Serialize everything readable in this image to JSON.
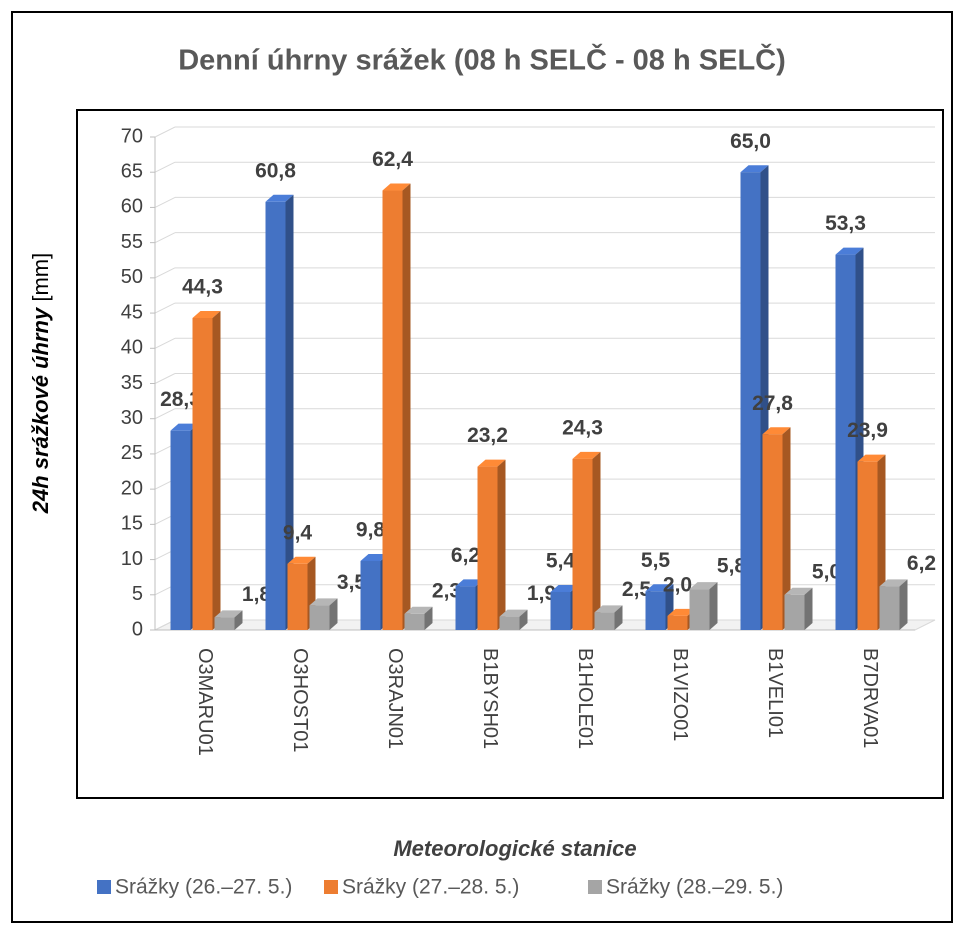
{
  "chart_data": {
    "type": "bar3d",
    "title": "Denní úhrny srážek (08 h SELČ - 08 h SELČ)",
    "ylabel": "24h srážkové úhrny",
    "ylabel_unit": "[mm]",
    "xlabel": "Meteorologické stanice",
    "categories": [
      "O3MARU01",
      "O3HOST01",
      "O3RAJN01",
      "B1BYSH01",
      "B1HOLE01",
      "B1VIZO01",
      "B1VELI01",
      "B7DRVA01"
    ],
    "series": [
      {
        "name": "Srážky (26.–27. 5.)",
        "color": "#4472c4",
        "values": [
          28.3,
          60.8,
          9.8,
          6.2,
          5.4,
          5.5,
          65.0,
          53.3
        ],
        "value_labels": [
          "28,3",
          "60,8",
          "9,8",
          "6,2",
          "5,4",
          "5,5",
          "65,0",
          "53,3"
        ]
      },
      {
        "name": "Srážky  (27.–28. 5.)",
        "color": "#ed7d31",
        "values": [
          44.3,
          9.4,
          62.4,
          23.2,
          24.3,
          2.0,
          27.8,
          23.9
        ],
        "value_labels": [
          "44,3",
          "9,4",
          "62,4",
          "23,2",
          "24,3",
          "2,0",
          "27,8",
          "23,9"
        ]
      },
      {
        "name": "Srážky  (28.–29. 5.)",
        "color": "#a5a5a5",
        "values": [
          1.8,
          3.5,
          2.3,
          1.9,
          2.5,
          5.8,
          5.0,
          6.2
        ],
        "value_labels": [
          "1,8",
          "3,5",
          "2,3",
          "1,9",
          "2,5",
          "5,8",
          "5,0",
          "6,2"
        ]
      }
    ],
    "ylim": [
      0,
      70
    ],
    "yticks": [
      0,
      5,
      10,
      15,
      20,
      25,
      30,
      35,
      40,
      45,
      50,
      55,
      60,
      65,
      70
    ],
    "grid": true,
    "legend": "bottom"
  }
}
